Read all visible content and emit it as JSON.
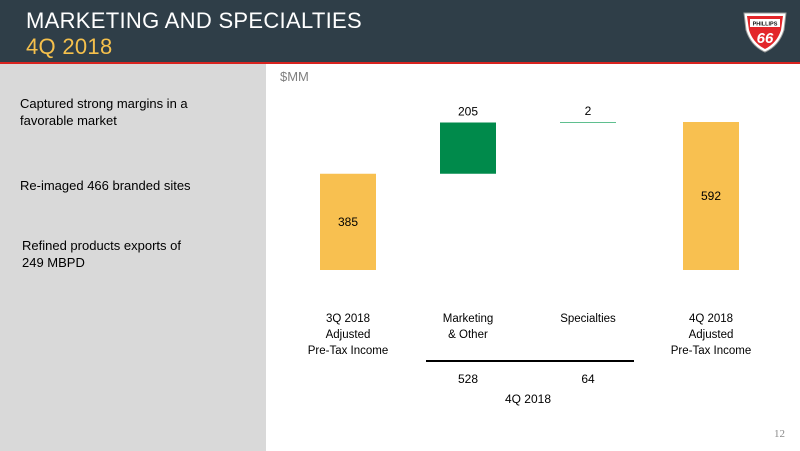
{
  "header": {
    "title": "MARKETING AND SPECIALTIES",
    "subtitle": "4Q 2018",
    "logo_text_top": "PHILLIPS",
    "logo_text_main": "66",
    "colors": {
      "background": "#2f3e48",
      "title": "#ffffff",
      "subtitle": "#f5c04c",
      "rule": "#d8231f"
    }
  },
  "sidebar": {
    "bullets": [
      {
        "lines": [
          "Captured strong margins in a",
          "favorable market"
        ]
      },
      {
        "lines": [
          "Re-imaged 466 branded sites"
        ]
      },
      {
        "lines": [
          "Refined products exports of",
          "249 MBPD"
        ]
      }
    ]
  },
  "chart_data": {
    "type": "bar",
    "subtype": "waterfall",
    "ylabel": "$MM",
    "categories": [
      [
        "3Q 2018",
        "Adjusted",
        "Pre-Tax Income"
      ],
      [
        "Marketing",
        "& Other"
      ],
      [
        "Specialties"
      ],
      [
        "4Q 2018",
        "Adjusted",
        "Pre-Tax Income"
      ]
    ],
    "bars": [
      {
        "kind": "total",
        "start": 0,
        "end": 385,
        "label": "385",
        "color": "#f8c050"
      },
      {
        "kind": "delta",
        "start": 385,
        "end": 590,
        "label": "205",
        "color": "#008a4b"
      },
      {
        "kind": "delta",
        "start": 590,
        "end": 592,
        "label": "2",
        "color": "#008a4b"
      },
      {
        "kind": "total",
        "start": 0,
        "end": 592,
        "label": "592",
        "color": "#f8c050"
      }
    ],
    "ylim": [
      0,
      592
    ],
    "period_totals": {
      "values": [
        "528",
        "64"
      ],
      "label": "4Q 2018"
    }
  },
  "page_number": "12"
}
